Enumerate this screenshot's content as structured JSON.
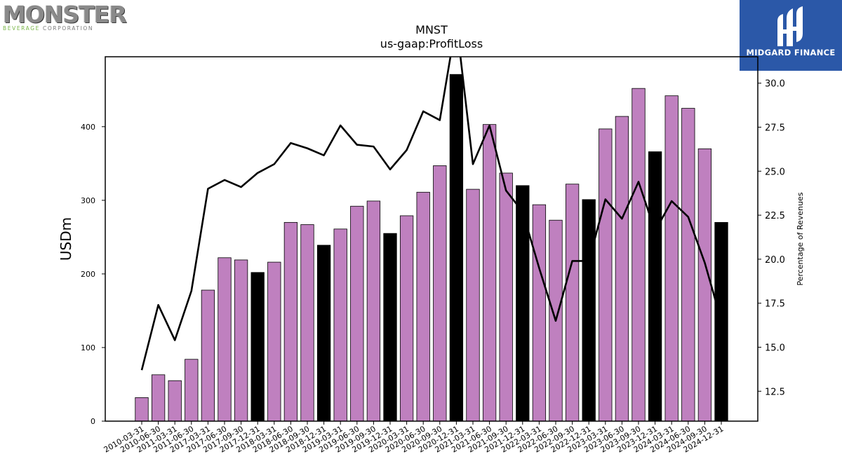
{
  "logos": {
    "left": {
      "word": "MONSTER",
      "sub_green": "BEVERAGE",
      "sub_gray": " CORPORATION"
    },
    "right": {
      "text": "MIDGARD FINANCE"
    }
  },
  "chart_data": {
    "type": "bar",
    "title": "MNST",
    "subtitle": "us-gaap:ProfitLoss",
    "ylabel": "USDm",
    "y2label": "Percentage of Revenues",
    "ylim": [
      0,
      495
    ],
    "y2lim": [
      10.8,
      31.5
    ],
    "yticks": [
      0,
      100,
      200,
      300,
      400
    ],
    "y2ticks": [
      12.5,
      15.0,
      17.5,
      20.0,
      22.5,
      25.0,
      27.5,
      30.0
    ],
    "grid": false,
    "colors": {
      "quarter_bar": "#bf80bf",
      "year_end_bar": "#000000",
      "line": "#000000",
      "bar_edge": "#000000"
    },
    "categories": [
      "2010-03-31",
      "2010-06-30",
      "2011-03-31",
      "2011-06-30",
      "2017-03-31",
      "2017-06-30",
      "2017-09-30",
      "2017-12-31",
      "2018-03-31",
      "2018-06-30",
      "2018-09-30",
      "2018-12-31",
      "2019-03-31",
      "2019-06-30",
      "2019-09-30",
      "2019-12-31",
      "2020-03-31",
      "2020-06-30",
      "2020-09-30",
      "2020-12-31",
      "2021-03-31",
      "2021-06-30",
      "2021-09-30",
      "2021-12-31",
      "2022-03-31",
      "2022-06-30",
      "2022-09-30",
      "2022-12-31",
      "2023-03-31",
      "2023-06-30",
      "2023-09-30",
      "2023-12-31",
      "2024-03-31",
      "2024-06-30",
      "2024-09-30",
      "2024-12-31"
    ],
    "series": [
      {
        "type": "bar",
        "values": [
          32,
          63,
          55,
          84,
          178,
          222,
          219,
          202,
          216,
          270,
          267,
          239,
          261,
          292,
          299,
          255,
          279,
          311,
          347,
          471,
          315,
          403,
          337,
          320,
          294,
          273,
          322,
          301,
          397,
          414,
          452,
          366,
          442,
          425,
          370,
          270
        ],
        "year_end": [
          false,
          false,
          false,
          false,
          false,
          false,
          false,
          true,
          false,
          false,
          false,
          true,
          false,
          false,
          false,
          true,
          false,
          false,
          false,
          true,
          false,
          false,
          false,
          true,
          false,
          false,
          false,
          true,
          false,
          false,
          false,
          true,
          false,
          false,
          false,
          true
        ]
      },
      {
        "type": "line",
        "axis": "right",
        "values": [
          13.7,
          17.4,
          15.4,
          18.2,
          24.0,
          24.5,
          24.1,
          24.9,
          25.4,
          26.6,
          26.3,
          25.9,
          27.6,
          26.5,
          26.4,
          25.1,
          26.2,
          28.4,
          27.9,
          33.5,
          25.4,
          27.6,
          23.9,
          22.7,
          19.5,
          16.5,
          19.9,
          19.9,
          23.4,
          22.3,
          24.4,
          21.6,
          23.3,
          22.4,
          19.8,
          16.5
        ]
      }
    ]
  }
}
